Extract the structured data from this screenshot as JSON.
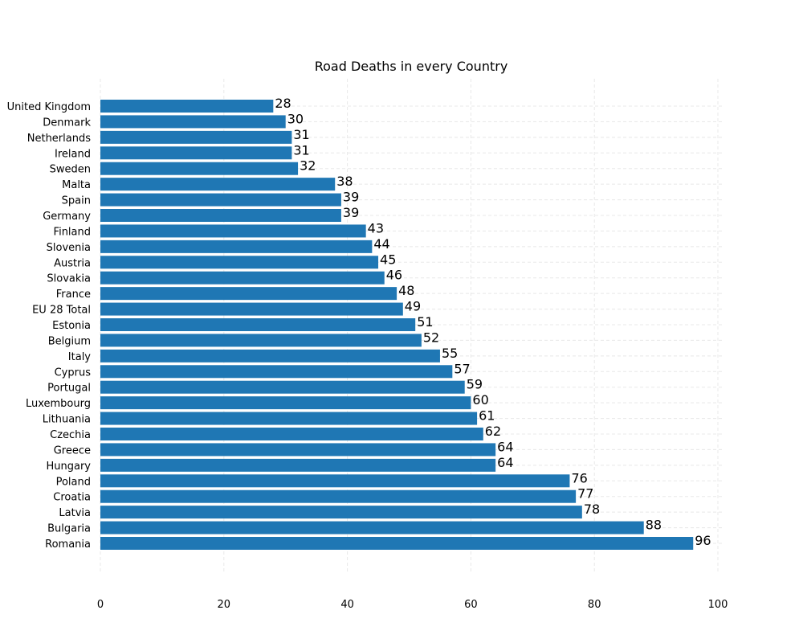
{
  "chart_data": {
    "type": "bar",
    "orientation": "horizontal",
    "title": "Road Deaths in every Country",
    "xlabel": "",
    "ylabel": "",
    "xlim": [
      0,
      100
    ],
    "xticks": [
      0,
      20,
      40,
      60,
      80,
      100
    ],
    "grid": true,
    "bar_color": "#1f77b4",
    "categories": [
      "United Kingdom",
      "Denmark",
      "Netherlands",
      "Ireland",
      "Sweden",
      "Malta",
      "Spain",
      "Germany",
      "Finland",
      "Slovenia",
      "Austria",
      "Slovakia",
      "France",
      "EU 28 Total",
      "Estonia",
      "Belgium",
      "Italy",
      "Cyprus",
      "Portugal",
      "Luxembourg",
      "Lithuania",
      "Czechia",
      "Greece",
      "Hungary",
      "Poland",
      "Croatia",
      "Latvia",
      "Bulgaria",
      "Romania"
    ],
    "values": [
      28,
      30,
      31,
      31,
      32,
      38,
      39,
      39,
      43,
      44,
      45,
      46,
      48,
      49,
      51,
      52,
      55,
      57,
      59,
      60,
      61,
      62,
      64,
      64,
      76,
      77,
      78,
      88,
      96
    ]
  }
}
